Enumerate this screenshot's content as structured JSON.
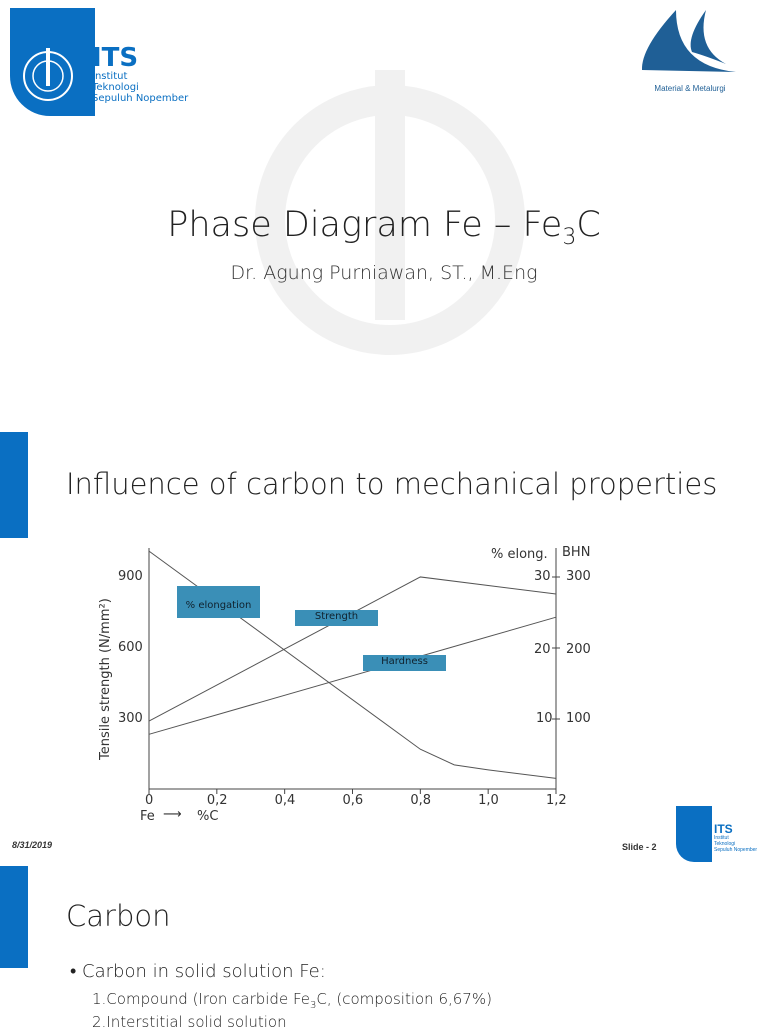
{
  "slide1": {
    "logo_its": {
      "brand": "ITS",
      "lines": [
        "Institut",
        "Teknologi",
        "Sepuluh Nopember"
      ]
    },
    "logo_dept": "Material & Metalurgi",
    "title_main": "Phase Diagram Fe – Fe",
    "title_sub": "3",
    "title_end": "C",
    "author": "Dr. Agung Purniawan, ST., M.Eng"
  },
  "slide2": {
    "title": "Influence of carbon to mechanical properties",
    "date": "8/31/2019",
    "slide_number": "Slide - 2",
    "logo_small": {
      "brand": "ITS",
      "lines": [
        "Institut",
        "Teknologi",
        "Sepuluh Nopember"
      ]
    }
  },
  "chart_data": {
    "type": "line",
    "xlabel_left": "Fe",
    "xlabel_right": "%C",
    "ylabel": "Tensile strength (N/mm²)",
    "y2label": "% elong.",
    "y3label": "BHN",
    "x_ticks": [
      "0",
      "0,2",
      "0,4",
      "0,6",
      "0,8",
      "1,0",
      "1,2"
    ],
    "y_ticks": [
      "300",
      "600",
      "900"
    ],
    "y2_ticks": [
      "10",
      "20",
      "30"
    ],
    "y3_ticks": [
      "100",
      "200",
      "300"
    ],
    "xlim": [
      0,
      1.2
    ],
    "series": [
      {
        "name": "% elongation",
        "axis": "% elong.",
        "x": [
          0,
          0.8,
          0.9,
          1.0,
          1.2
        ],
        "y": [
          33.5,
          5.6,
          3.4,
          2.7,
          1.5
        ]
      },
      {
        "name": "Strength",
        "axis": "N/mm²",
        "x": [
          0,
          0.8,
          1.2
        ],
        "y": [
          287,
          896,
          824
        ]
      },
      {
        "name": "Hardness",
        "axis": "BHN",
        "x": [
          0,
          1.2
        ],
        "y": [
          77,
          242
        ]
      }
    ],
    "label_color": "#3a8fb7"
  },
  "slide3": {
    "title": "Carbon",
    "bullet": "Carbon in solid solution Fe:",
    "items": [
      {
        "pre": "1.Compound  (Iron carbide Fe",
        "sub": "3",
        "post": "C, (composition 6,67%)"
      },
      {
        "pre": "2.Interstitial solid solution"
      }
    ]
  },
  "colors": {
    "brand_blue": "#0a6fc2",
    "dept_blue": "#1f5f96"
  }
}
